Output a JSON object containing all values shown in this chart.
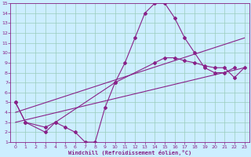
{
  "bg_color": "#b8e8e0",
  "plot_bg_color": "#cceeff",
  "line_color": "#882288",
  "grid_color": "#99ccbb",
  "xlim": [
    -0.5,
    23.5
  ],
  "ylim": [
    1,
    15
  ],
  "xticks": [
    0,
    1,
    2,
    3,
    4,
    5,
    6,
    7,
    8,
    9,
    10,
    11,
    12,
    13,
    14,
    15,
    16,
    17,
    18,
    19,
    20,
    21,
    22,
    23
  ],
  "yticks": [
    1,
    2,
    3,
    4,
    5,
    6,
    7,
    8,
    9,
    10,
    11,
    12,
    13,
    14,
    15
  ],
  "xlabel": "Windchill (Refroidissement éolien,°C)",
  "line1_x": [
    0,
    1,
    3,
    4,
    5,
    6,
    7,
    8,
    9,
    10,
    11,
    12,
    13,
    14,
    15,
    16,
    17,
    18,
    19,
    20,
    21,
    22
  ],
  "line1_y": [
    5,
    3,
    2,
    3,
    2.5,
    2,
    1,
    1,
    4.5,
    7,
    9,
    11.5,
    14,
    15,
    15,
    13.5,
    11.5,
    10,
    8.5,
    8,
    8,
    8.5
  ],
  "line2_x": [
    0,
    1,
    3,
    4,
    10,
    14,
    15,
    16,
    17,
    18,
    19,
    20,
    21,
    22,
    23
  ],
  "line2_y": [
    5,
    3,
    2.5,
    3,
    7,
    9,
    9.5,
    9.5,
    9.2,
    9,
    8.7,
    8.5,
    8.5,
    7.5,
    8.5
  ],
  "line3_x": [
    0,
    23
  ],
  "line3_y": [
    3,
    8.5
  ],
  "line4_x": [
    0,
    23
  ],
  "line4_y": [
    4,
    11.5
  ]
}
